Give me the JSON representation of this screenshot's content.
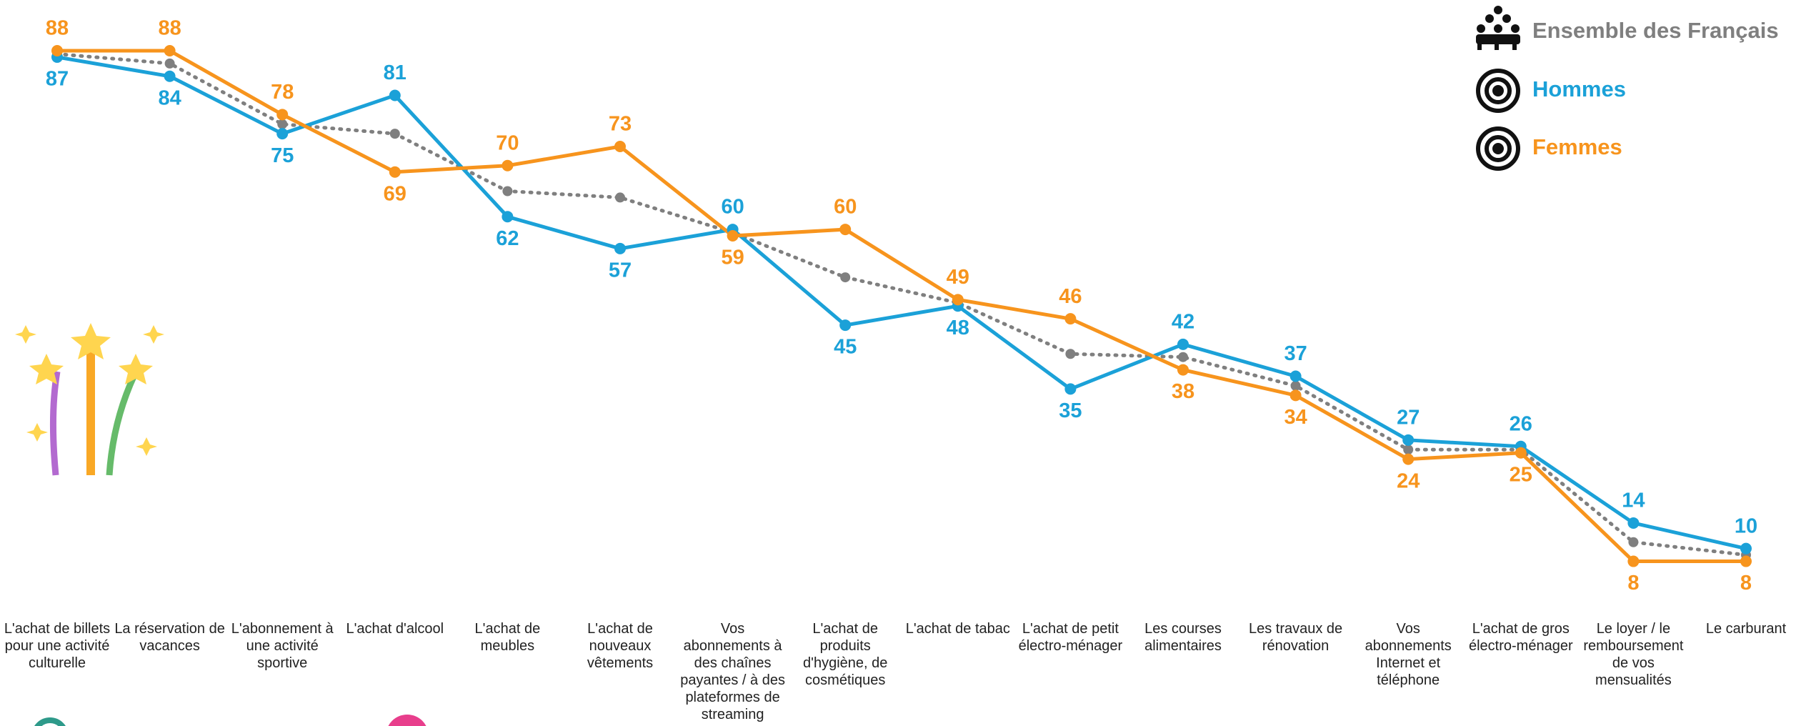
{
  "chart_data": {
    "type": "line",
    "categories": [
      "L'achat de billets pour une activité culturelle",
      "La réservation de vacances",
      "L'abonnement à une activité sportive",
      "L'achat d'alcool",
      "L'achat de meubles",
      "L'achat de nouveaux vêtements",
      "Vos abonnements à des chaînes payantes / à des plateformes de streaming",
      "L'achat de produits d'hygiène, de cosmétiques",
      "L'achat de tabac",
      "L'achat de petit électro-ménager",
      "Les courses alimentaires",
      "Les travaux de rénovation",
      "Vos abonnements Internet et téléphone",
      "L'achat de gros électro-ménager",
      "Le loyer / le remboursement de vos mensualités",
      "Le carburant"
    ],
    "series": [
      {
        "name": "Ensemble des Français",
        "color": "#7f7f7f",
        "dotted": true,
        "values": [
          87.5,
          86,
          76.5,
          75,
          66,
          65,
          59.5,
          52.5,
          48.5,
          40.5,
          40,
          35.5,
          25.5,
          25.5,
          11,
          9
        ]
      },
      {
        "name": "Hommes",
        "color": "#1ba1d8",
        "values": [
          87,
          84,
          75,
          81,
          62,
          57,
          60,
          45,
          48,
          35,
          42,
          37,
          27,
          26,
          14,
          10
        ]
      },
      {
        "name": "Femmes",
        "color": "#f7941d",
        "values": [
          88,
          88,
          78,
          69,
          70,
          73,
          59,
          60,
          49,
          46,
          38,
          34,
          24,
          25,
          8,
          8
        ]
      }
    ],
    "ylim": [
      0,
      88
    ]
  }
}
